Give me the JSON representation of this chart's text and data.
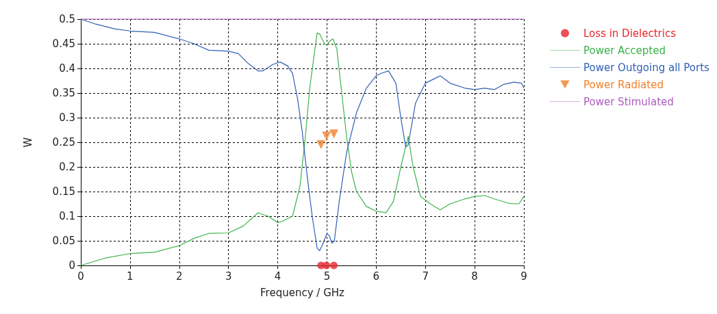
{
  "chart_data": {
    "type": "line",
    "xlabel": "Frequency / GHz",
    "ylabel": "W",
    "xlim": [
      0,
      9
    ],
    "xticks": [
      0,
      1,
      2,
      3,
      4,
      5,
      6,
      7,
      8,
      9
    ],
    "ylim": [
      0,
      0.5
    ],
    "yticks": [
      0,
      0.05,
      0.1,
      0.15,
      0.2,
      0.25,
      0.3,
      0.35,
      0.4,
      0.45,
      0.5
    ],
    "grid": true,
    "legend": "right",
    "series": [
      {
        "name": "Loss in Dielectrics",
        "type": "scatter",
        "color": "#e8262a",
        "marker": "circle",
        "x": [
          4.88,
          4.99,
          5.14
        ],
        "values": [
          0,
          0,
          0
        ]
      },
      {
        "name": "Power Accepted",
        "color": "#3cb44a",
        "marker": "none",
        "x": [
          0,
          0.5,
          1,
          1.5,
          2,
          2.3,
          2.6,
          3,
          3.3,
          3.6,
          3.8,
          4.0,
          4.1,
          4.3,
          4.45,
          4.55,
          4.65,
          4.8,
          4.85,
          4.95,
          5.0,
          5.05,
          5.12,
          5.2,
          5.3,
          5.4,
          5.5,
          5.6,
          5.8,
          6.0,
          6.2,
          6.35,
          6.5,
          6.65,
          6.75,
          6.9,
          7.1,
          7.3,
          7.5,
          7.8,
          8.0,
          8.2,
          8.4,
          8.7,
          8.9,
          9
        ],
        "values": [
          0,
          0.015,
          0.024,
          0.027,
          0.04,
          0.055,
          0.065,
          0.066,
          0.08,
          0.107,
          0.1,
          0.087,
          0.09,
          0.1,
          0.16,
          0.25,
          0.36,
          0.472,
          0.47,
          0.45,
          0.447,
          0.455,
          0.46,
          0.44,
          0.35,
          0.26,
          0.19,
          0.15,
          0.12,
          0.11,
          0.107,
          0.13,
          0.2,
          0.262,
          0.2,
          0.14,
          0.125,
          0.113,
          0.125,
          0.135,
          0.14,
          0.142,
          0.135,
          0.126,
          0.125,
          0.14
        ]
      },
      {
        "name": "Power Outgoing all Ports",
        "color": "#2f5fb5",
        "marker": "none",
        "x": [
          0,
          0.3,
          0.7,
          1,
          1.5,
          2,
          2.3,
          2.6,
          3,
          3.2,
          3.4,
          3.6,
          3.7,
          3.9,
          4.05,
          4.2,
          4.3,
          4.4,
          4.5,
          4.6,
          4.7,
          4.8,
          4.85,
          4.9,
          5.0,
          5.05,
          5.1,
          5.15,
          5.25,
          5.4,
          5.6,
          5.8,
          6.0,
          6.1,
          6.25,
          6.4,
          6.5,
          6.6,
          6.65,
          6.8,
          7.0,
          7.2,
          7.3,
          7.5,
          7.8,
          8.0,
          8.2,
          8.4,
          8.6,
          8.8,
          8.95,
          9
        ],
        "values": [
          0.5,
          0.49,
          0.48,
          0.476,
          0.473,
          0.46,
          0.45,
          0.437,
          0.435,
          0.43,
          0.41,
          0.395,
          0.395,
          0.408,
          0.413,
          0.405,
          0.39,
          0.34,
          0.27,
          0.18,
          0.1,
          0.035,
          0.03,
          0.04,
          0.065,
          0.06,
          0.045,
          0.05,
          0.13,
          0.23,
          0.31,
          0.36,
          0.385,
          0.39,
          0.395,
          0.37,
          0.3,
          0.24,
          0.245,
          0.33,
          0.37,
          0.38,
          0.385,
          0.37,
          0.36,
          0.357,
          0.36,
          0.357,
          0.368,
          0.372,
          0.37,
          0.36
        ]
      },
      {
        "name": "Power Radiated",
        "type": "scatter",
        "color": "#f07f2a",
        "marker": "triangle",
        "x": [
          4.88,
          4.99,
          5.14
        ],
        "values": [
          0.245,
          0.263,
          0.267
        ]
      },
      {
        "name": "Power Stimulated",
        "color": "#b05cc0",
        "marker": "none",
        "x": [
          0,
          9
        ],
        "values": [
          0.5,
          0.5
        ]
      }
    ]
  }
}
